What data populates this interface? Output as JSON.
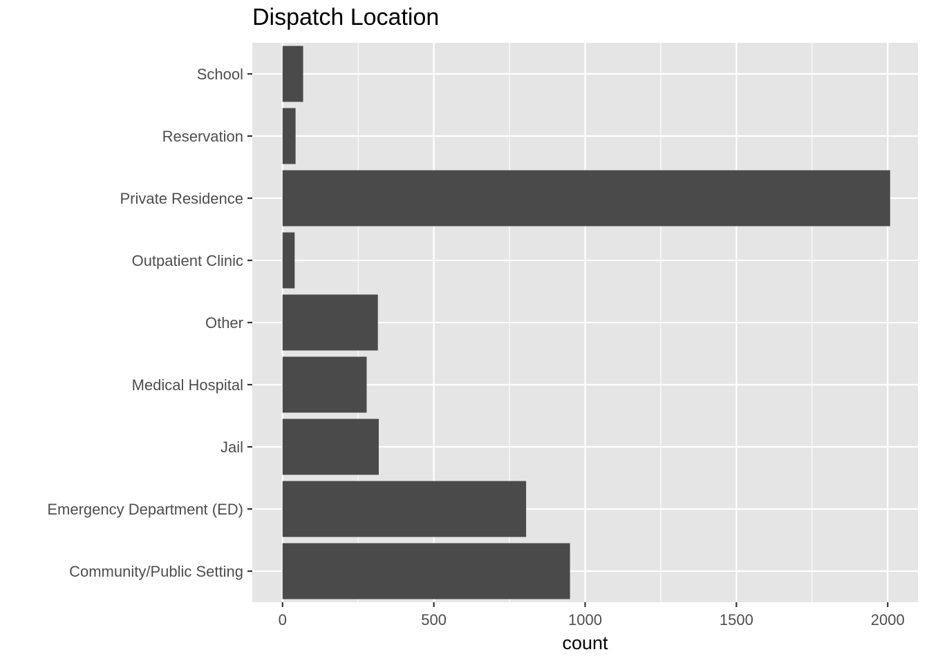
{
  "chart_data": {
    "type": "bar",
    "orientation": "horizontal",
    "title": "Dispatch Location",
    "xlabel": "count",
    "ylabel": "",
    "categories": [
      "Community/Public Setting",
      "Emergency Department (ED)",
      "Jail",
      "Medical Hospital",
      "Other",
      "Outpatient Clinic",
      "Private Residence",
      "Reservation",
      "School"
    ],
    "values": [
      950,
      805,
      318,
      278,
      315,
      40,
      2008,
      43,
      68
    ],
    "xlim": [
      -100,
      2100
    ],
    "x_ticks": [
      0,
      500,
      1000,
      1500,
      2000
    ],
    "x_tick_labels": [
      "0",
      "500",
      "1000",
      "1500",
      "2000"
    ],
    "grid": true,
    "colors": {
      "panel": "#e5e5e5",
      "grid": "#ffffff",
      "bar": "#4a4a4a",
      "text": "#4d4d4d"
    }
  }
}
